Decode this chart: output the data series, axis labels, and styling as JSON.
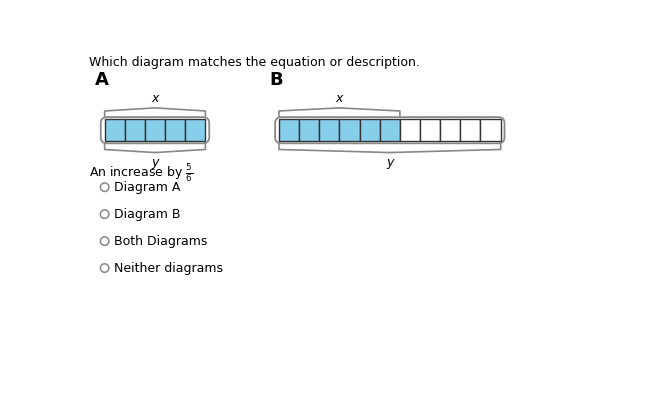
{
  "title": "Which diagram matches the equation or description.",
  "diag_A_label": "A",
  "diag_B_label": "B",
  "diag_A_total_cells": 5,
  "diag_A_filled_cells": 5,
  "diag_B_total_cells": 11,
  "diag_B_filled_cells": 6,
  "brace_top_label": "x",
  "brace_bottom_label": "y",
  "fill_color": "#87CEEB",
  "cell_edge_color": "#333333",
  "brace_color": "#888888",
  "options": [
    "Diagram A",
    "Diagram B",
    "Both Diagrams",
    "Neither diagrams"
  ],
  "bg_color": "#ffffff"
}
